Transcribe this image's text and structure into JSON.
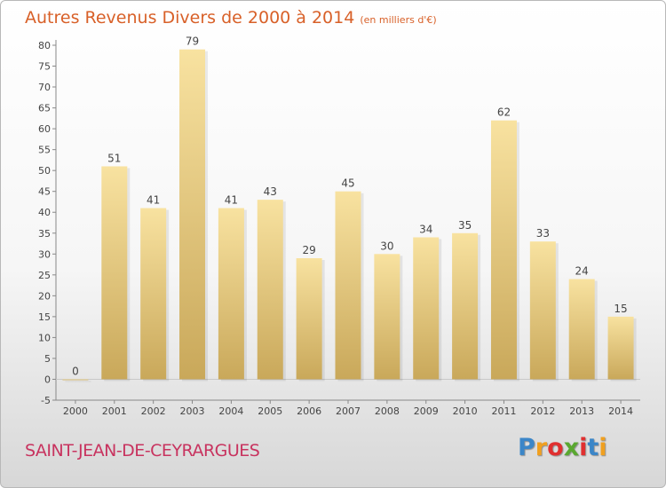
{
  "header": {
    "title": "Autres Revenus Divers de 2000 à 2014",
    "unit": "(en milliers d'€)"
  },
  "footer": {
    "commune": "SAINT-JEAN-DE-CEYRARGUES",
    "logo": {
      "letters": [
        "P",
        "r",
        "o",
        "x",
        "i",
        "t",
        "i"
      ],
      "colors": [
        "#3b86c8",
        "#f0a020",
        "#e03030",
        "#5aa830",
        "#e03030",
        "#3b86c8",
        "#f0a020"
      ]
    }
  },
  "colors": {
    "bar_light": "#f8e2a0",
    "bar_dark": "#c9a85a",
    "title": "#d86028",
    "commune": "#c8335f"
  },
  "chart_data": {
    "type": "bar",
    "title": "Autres Revenus Divers de 2000 à 2014",
    "xlabel": "",
    "ylabel": "",
    "categories": [
      "2000",
      "2001",
      "2002",
      "2003",
      "2004",
      "2005",
      "2006",
      "2007",
      "2008",
      "2009",
      "2010",
      "2011",
      "2012",
      "2013",
      "2014"
    ],
    "values": [
      0,
      51,
      41,
      79,
      41,
      43,
      29,
      45,
      30,
      34,
      35,
      62,
      33,
      24,
      15
    ],
    "data_labels": [
      "0",
      "51",
      "41",
      "79",
      "41",
      "43",
      "29",
      "45",
      "30",
      "34",
      "35",
      "62",
      "33",
      "24",
      "15"
    ],
    "ylim": [
      -5,
      80
    ],
    "yticks": [
      -5,
      0,
      5,
      10,
      15,
      20,
      25,
      30,
      35,
      40,
      45,
      50,
      55,
      60,
      65,
      70,
      75,
      80
    ],
    "grid": false,
    "legend": "none"
  }
}
